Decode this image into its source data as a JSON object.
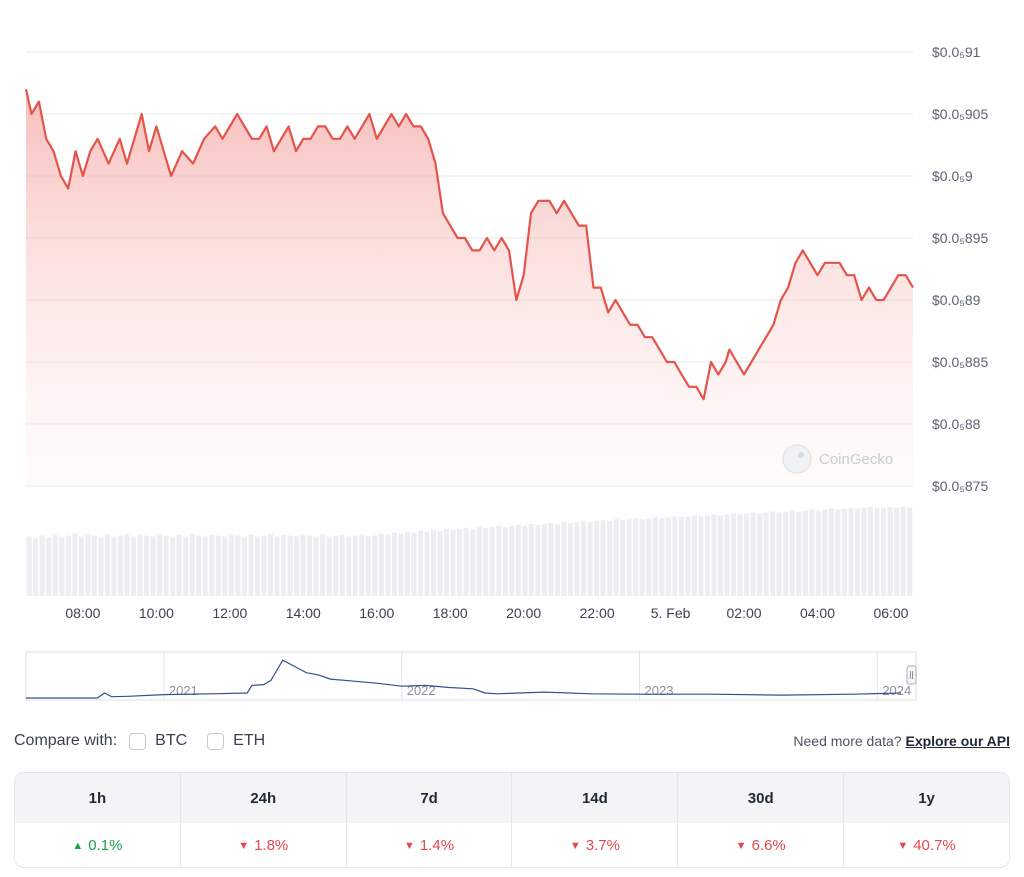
{
  "chart_data": {
    "type": "area",
    "y_axis": {
      "position": "right",
      "ticks": [
        {
          "value": 9.1e-06,
          "label": "$0.0₅91"
        },
        {
          "value": 9.05e-06,
          "label": "$0.0₅905"
        },
        {
          "value": 9e-06,
          "label": "$0.0₅9"
        },
        {
          "value": 8.95e-06,
          "label": "$0.0₅895"
        },
        {
          "value": 8.9e-06,
          "label": "$0.0₅89"
        },
        {
          "value": 8.85e-06,
          "label": "$0.0₅885"
        },
        {
          "value": 8.8e-06,
          "label": "$0.0₅88"
        },
        {
          "value": 8.75e-06,
          "label": "$0.0₅875"
        }
      ],
      "ylim": [
        8.75e-06,
        9.1e-06
      ]
    },
    "x_axis": {
      "xlim_hours": [
        6.45,
        30.6
      ],
      "ticks": [
        {
          "value": 8,
          "label": "08:00"
        },
        {
          "value": 10,
          "label": "10:00"
        },
        {
          "value": 12,
          "label": "12:00"
        },
        {
          "value": 14,
          "label": "14:00"
        },
        {
          "value": 16,
          "label": "16:00"
        },
        {
          "value": 18,
          "label": "18:00"
        },
        {
          "value": 20,
          "label": "20:00"
        },
        {
          "value": 22,
          "label": "22:00"
        },
        {
          "value": 24,
          "label": "5. Feb"
        },
        {
          "value": 26,
          "label": "02:00"
        },
        {
          "value": 28,
          "label": "04:00"
        },
        {
          "value": 30,
          "label": "06:00"
        }
      ]
    },
    "grid": true,
    "line_color": "#e5534b",
    "price_x": [
      6.45,
      6.6,
      6.8,
      7.0,
      7.2,
      7.4,
      7.6,
      7.8,
      8.0,
      8.2,
      8.4,
      8.7,
      9.0,
      9.2,
      9.4,
      9.6,
      9.8,
      10.0,
      10.2,
      10.4,
      10.7,
      11.0,
      11.3,
      11.6,
      11.8,
      12.0,
      12.2,
      12.4,
      12.6,
      12.8,
      13.0,
      13.2,
      13.4,
      13.6,
      13.8,
      14.0,
      14.2,
      14.4,
      14.6,
      14.8,
      15.0,
      15.2,
      15.4,
      15.6,
      15.8,
      16.0,
      16.2,
      16.4,
      16.6,
      16.8,
      17.0,
      17.2,
      17.4,
      17.6,
      17.8,
      18.0,
      18.2,
      18.4,
      18.6,
      18.8,
      19.0,
      19.2,
      19.4,
      19.6,
      19.8,
      20.0,
      20.2,
      20.4,
      20.5,
      20.7,
      20.9,
      21.1,
      21.3,
      21.5,
      21.7,
      21.9,
      22.1,
      22.3,
      22.5,
      22.7,
      22.9,
      23.1,
      23.3,
      23.5,
      23.7,
      23.9,
      24.1,
      24.3,
      24.5,
      24.7,
      24.9,
      25.1,
      25.3,
      25.5,
      25.6,
      25.8,
      26.0,
      26.2,
      26.4,
      26.6,
      26.8,
      27.0,
      27.2,
      27.4,
      27.6,
      27.8,
      28.0,
      28.2,
      28.4,
      28.6,
      28.8,
      29.0,
      29.2,
      29.4,
      29.6,
      29.8,
      30.0,
      30.2,
      30.4,
      30.6
    ],
    "price_y": [
      9.07e-06,
      9.05e-06,
      9.06e-06,
      9.03e-06,
      9.02e-06,
      9e-06,
      8.99e-06,
      9.02e-06,
      9e-06,
      9.02e-06,
      9.03e-06,
      9.01e-06,
      9.03e-06,
      9.01e-06,
      9.03e-06,
      9.05e-06,
      9.02e-06,
      9.04e-06,
      9.02e-06,
      9e-06,
      9.02e-06,
      9.01e-06,
      9.03e-06,
      9.04e-06,
      9.03e-06,
      9.04e-06,
      9.05e-06,
      9.04e-06,
      9.03e-06,
      9.03e-06,
      9.04e-06,
      9.02e-06,
      9.03e-06,
      9.04e-06,
      9.02e-06,
      9.03e-06,
      9.03e-06,
      9.04e-06,
      9.04e-06,
      9.03e-06,
      9.03e-06,
      9.04e-06,
      9.03e-06,
      9.04e-06,
      9.05e-06,
      9.03e-06,
      9.04e-06,
      9.05e-06,
      9.04e-06,
      9.05e-06,
      9.04e-06,
      9.04e-06,
      9.03e-06,
      9.01e-06,
      8.97e-06,
      8.96e-06,
      8.95e-06,
      8.95e-06,
      8.94e-06,
      8.94e-06,
      8.95e-06,
      8.94e-06,
      8.95e-06,
      8.94e-06,
      8.9e-06,
      8.92e-06,
      8.97e-06,
      8.98e-06,
      8.98e-06,
      8.98e-06,
      8.97e-06,
      8.98e-06,
      8.97e-06,
      8.96e-06,
      8.96e-06,
      8.91e-06,
      8.91e-06,
      8.89e-06,
      8.9e-06,
      8.89e-06,
      8.88e-06,
      8.88e-06,
      8.87e-06,
      8.87e-06,
      8.86e-06,
      8.85e-06,
      8.85e-06,
      8.84e-06,
      8.83e-06,
      8.83e-06,
      8.82e-06,
      8.85e-06,
      8.84e-06,
      8.85e-06,
      8.86e-06,
      8.85e-06,
      8.84e-06,
      8.85e-06,
      8.86e-06,
      8.87e-06,
      8.88e-06,
      8.9e-06,
      8.91e-06,
      8.93e-06,
      8.94e-06,
      8.93e-06,
      8.92e-06,
      8.93e-06,
      8.93e-06,
      8.93e-06,
      8.92e-06,
      8.92e-06,
      8.9e-06,
      8.91e-06,
      8.9e-06,
      8.9e-06,
      8.91e-06,
      8.92e-06,
      8.92e-06,
      8.91e-06
    ],
    "volume": [
      0.62,
      0.6,
      0.63,
      0.61,
      0.64,
      0.62,
      0.63,
      0.65,
      0.62,
      0.64,
      0.63,
      0.61,
      0.64,
      0.62,
      0.63,
      0.65,
      0.62,
      0.64,
      0.63,
      0.62,
      0.64,
      0.63,
      0.61,
      0.64,
      0.62,
      0.65,
      0.63,
      0.62,
      0.64,
      0.63,
      0.62,
      0.64,
      0.63,
      0.61,
      0.64,
      0.62,
      0.63,
      0.65,
      0.62,
      0.64,
      0.63,
      0.62,
      0.64,
      0.63,
      0.61,
      0.64,
      0.62,
      0.63,
      0.64,
      0.62,
      0.63,
      0.64,
      0.62,
      0.63,
      0.65,
      0.64,
      0.66,
      0.65,
      0.67,
      0.66,
      0.68,
      0.67,
      0.69,
      0.68,
      0.7,
      0.69,
      0.7,
      0.71,
      0.7,
      0.72,
      0.71,
      0.72,
      0.73,
      0.72,
      0.73,
      0.74,
      0.73,
      0.75,
      0.74,
      0.75,
      0.76,
      0.75,
      0.77,
      0.76,
      0.77,
      0.78,
      0.77,
      0.78,
      0.79,
      0.78,
      0.8,
      0.79,
      0.8,
      0.81,
      0.8,
      0.81,
      0.82,
      0.81,
      0.82,
      0.83,
      0.82,
      0.83,
      0.84,
      0.83,
      0.84,
      0.85,
      0.84,
      0.85,
      0.86,
      0.85,
      0.86,
      0.87,
      0.86,
      0.87,
      0.88,
      0.87,
      0.88,
      0.89,
      0.88,
      0.89,
      0.9,
      0.89,
      0.9,
      0.91,
      0.9,
      0.91,
      0.92,
      0.91,
      0.92,
      0.93,
      0.92,
      0.92,
      0.93,
      0.92,
      0.93,
      0.92
    ],
    "navigator": {
      "labels": [
        {
          "value": 2021,
          "label": "2021"
        },
        {
          "value": 2022,
          "label": "2022"
        },
        {
          "value": 2023,
          "label": "2023"
        },
        {
          "value": 2024,
          "label": "2024"
        }
      ],
      "x": [
        2020.42,
        2020.72,
        2020.75,
        2020.78,
        2020.85,
        2021.0,
        2021.2,
        2021.35,
        2021.37,
        2021.42,
        2021.45,
        2021.5,
        2021.55,
        2021.6,
        2021.65,
        2021.7,
        2021.8,
        2021.9,
        2022.0,
        2022.1,
        2022.2,
        2022.3,
        2022.35,
        2022.4,
        2022.6,
        2022.8,
        2023.0,
        2023.3,
        2023.6,
        2023.9,
        2024.1
      ],
      "y": [
        0,
        0,
        0.12,
        0.03,
        0.04,
        0.08,
        0.1,
        0.12,
        0.3,
        0.32,
        0.42,
        0.9,
        0.75,
        0.6,
        0.55,
        0.45,
        0.4,
        0.35,
        0.28,
        0.3,
        0.25,
        0.22,
        0.12,
        0.1,
        0.14,
        0.1,
        0.09,
        0.09,
        0.07,
        0.09,
        0.12
      ],
      "xlim": [
        2020.42,
        2024.15
      ]
    },
    "watermark": "CoinGecko"
  },
  "compare": {
    "label": "Compare with:",
    "options": [
      {
        "label": "BTC",
        "checked": false
      },
      {
        "label": "ETH",
        "checked": false
      }
    ]
  },
  "api": {
    "prompt": "Need more data?",
    "link": "Explore our API"
  },
  "performance": {
    "headers": [
      "1h",
      "24h",
      "7d",
      "14d",
      "30d",
      "1y"
    ],
    "values": [
      {
        "text": "0.1%",
        "direction": "up"
      },
      {
        "text": "1.8%",
        "direction": "down"
      },
      {
        "text": "1.4%",
        "direction": "down"
      },
      {
        "text": "3.7%",
        "direction": "down"
      },
      {
        "text": "6.6%",
        "direction": "down"
      },
      {
        "text": "40.7%",
        "direction": "down"
      }
    ]
  }
}
